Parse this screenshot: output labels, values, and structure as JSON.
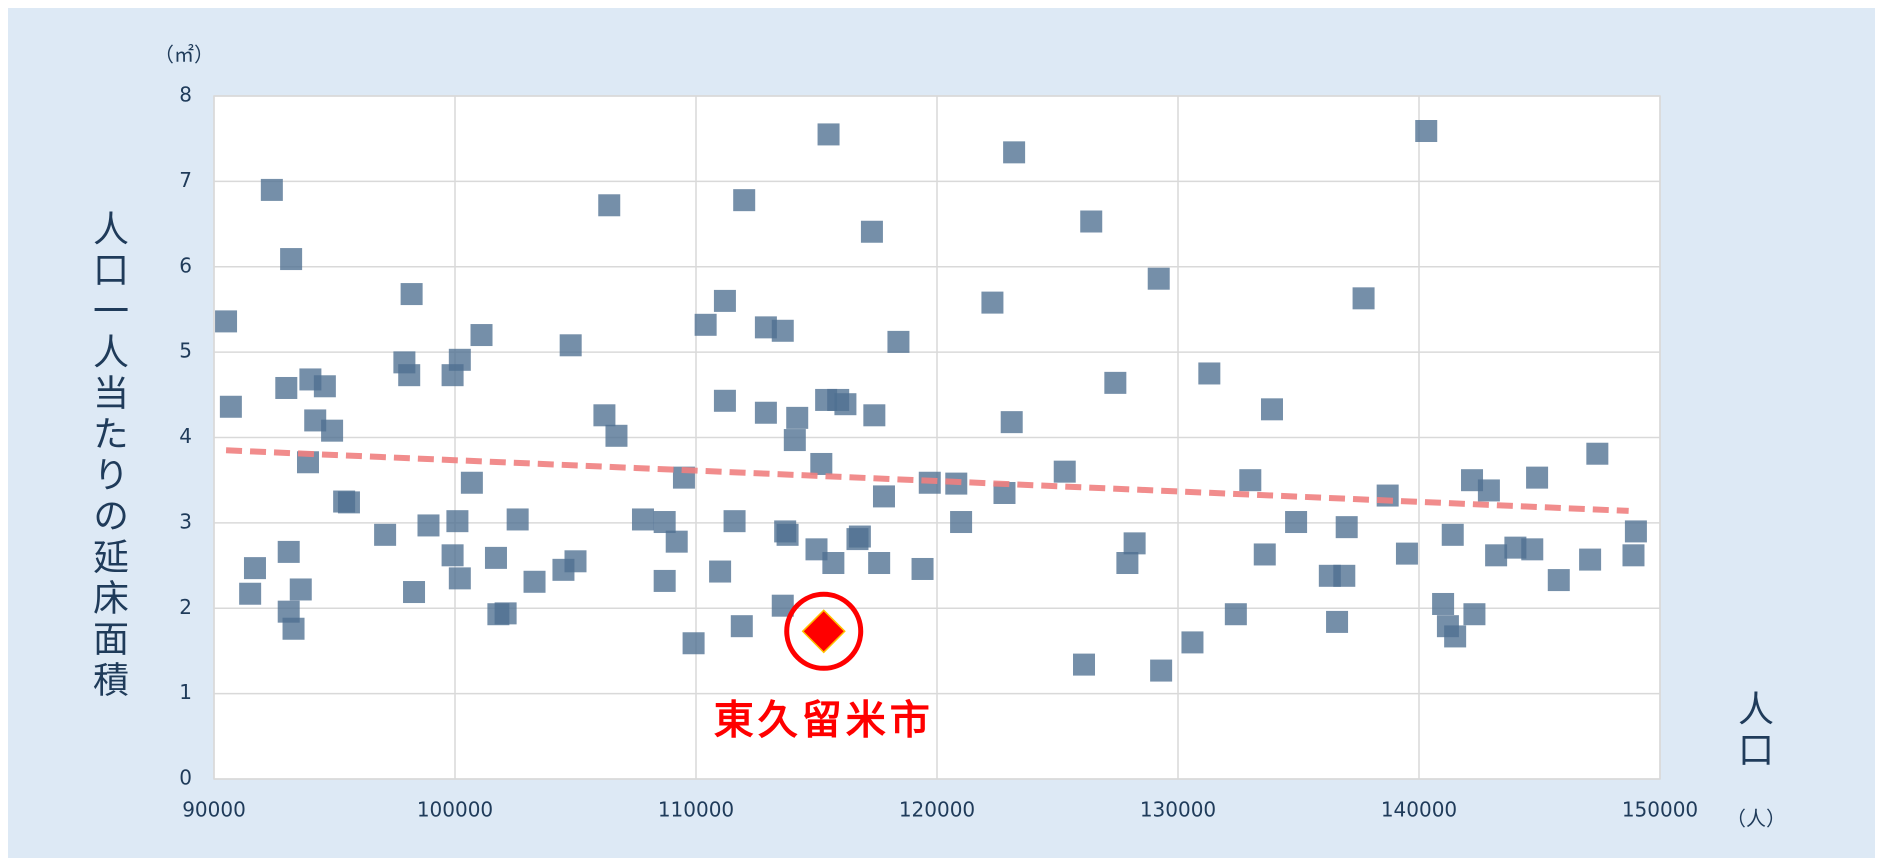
{
  "chart_data": {
    "type": "scatter",
    "y_label": "人口一人当たりの延床面積",
    "y_unit": "（㎡）",
    "x_label": "人口",
    "x_unit": "（人）",
    "xlim": [
      90000,
      150000
    ],
    "xticks": [
      90000,
      100000,
      110000,
      120000,
      130000,
      140000,
      150000
    ],
    "ylim": [
      0,
      8
    ],
    "yticks": [
      0,
      1,
      2,
      3,
      4,
      5,
      6,
      7,
      8
    ],
    "grid": true,
    "color": "#4e6f91",
    "x": [
      90500,
      90700,
      92400,
      93200,
      93000,
      94000,
      94600,
      94200,
      94900,
      93900,
      91700,
      91500,
      93100,
      93600,
      93100,
      93300,
      95400,
      95600,
      97100,
      98200,
      97900,
      98100,
      98300,
      98900,
      99900,
      100200,
      101100,
      100700,
      100100,
      99900,
      100200,
      101700,
      101800,
      102100,
      102600,
      103300,
      104500,
      105000,
      104800,
      106200,
      106700,
      106400,
      107800,
      108700,
      108700,
      109200,
      109500,
      109900,
      110400,
      111200,
      111200,
      111000,
      111600,
      111900,
      112000,
      112900,
      112900,
      113600,
      113700,
      113800,
      113600,
      114100,
      114200,
      115000,
      115500,
      115200,
      115400,
      115900,
      116200,
      115700,
      116700,
      116800,
      117300,
      117400,
      117600,
      117800,
      118400,
      119400,
      119700,
      120800,
      121000,
      122300,
      122800,
      123200,
      123100,
      125300,
      126100,
      126400,
      127400,
      127900,
      128200,
      129200,
      129300,
      130600,
      131300,
      132400,
      133000,
      133600,
      133900,
      134900,
      136300,
      136600,
      136900,
      137000,
      137700,
      138700,
      139500,
      140300,
      141000,
      141200,
      141500,
      141400,
      142200,
      142300,
      142900,
      143200,
      144000,
      144700,
      144900,
      145800,
      147100,
      147400,
      148900,
      149000
    ],
    "values": [
      5.36,
      4.36,
      6.9,
      6.09,
      4.58,
      4.68,
      4.6,
      4.2,
      4.08,
      3.71,
      2.47,
      2.17,
      2.66,
      2.22,
      1.96,
      1.76,
      3.25,
      3.24,
      2.86,
      5.68,
      4.88,
      4.73,
      2.19,
      2.97,
      4.73,
      4.91,
      5.2,
      3.47,
      3.02,
      2.62,
      2.35,
      2.59,
      1.93,
      1.94,
      3.04,
      2.31,
      2.45,
      2.55,
      5.08,
      4.26,
      4.02,
      6.72,
      3.04,
      3.01,
      2.32,
      2.78,
      3.53,
      1.59,
      5.32,
      5.6,
      4.43,
      2.43,
      3.02,
      1.79,
      6.78,
      4.29,
      5.29,
      5.25,
      2.9,
      2.86,
      2.03,
      3.97,
      4.23,
      2.69,
      7.55,
      3.69,
      4.44,
      4.44,
      4.39,
      2.53,
      2.81,
      2.84,
      6.41,
      4.26,
      2.53,
      3.31,
      5.12,
      2.46,
      3.47,
      3.46,
      3.01,
      5.58,
      3.35,
      7.34,
      4.18,
      3.6,
      1.34,
      6.53,
      4.64,
      2.53,
      2.76,
      5.86,
      1.27,
      1.6,
      4.75,
      1.93,
      3.5,
      2.63,
      4.33,
      3.01,
      2.38,
      1.84,
      2.38,
      2.95,
      5.63,
      3.32,
      2.64,
      7.59,
      2.05,
      1.79,
      1.67,
      2.86,
      3.5,
      1.93,
      3.38,
      2.62,
      2.71,
      2.69,
      3.53,
      2.33,
      2.57,
      3.81,
      2.62,
      2.9
    ],
    "trendline": {
      "x": [
        90500,
        148700
      ],
      "values": [
        3.85,
        3.14
      ],
      "color": "#f08080"
    },
    "highlight": {
      "label": "東久留米市",
      "x": 115300,
      "value": 1.73,
      "color": "#ff0000"
    }
  }
}
